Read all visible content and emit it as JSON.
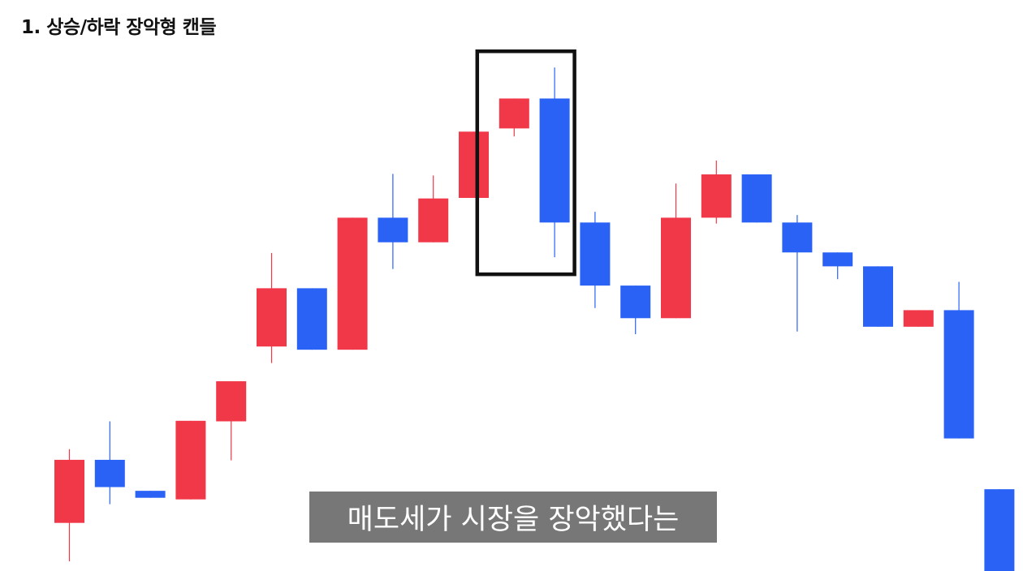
{
  "title": "1. 상승/하락 장악형 캔들",
  "subtitle": "매도세가 시장을 장악했다는",
  "colors": {
    "up": "#f03848",
    "down": "#2a62f5",
    "highlight": "#111111",
    "caption_bg": "#777777"
  },
  "chart_data": {
    "type": "candlestick",
    "title": "",
    "xlabel": "",
    "ylabel": "",
    "grid": false,
    "ylim": [
      0,
      100
    ],
    "highlight_range": [
      11,
      12
    ],
    "candles": [
      {
        "open": 9.0,
        "close": 20.8,
        "high": 22.8,
        "low": 1.8,
        "dir": "up"
      },
      {
        "open": 20.8,
        "close": 15.7,
        "high": 28.0,
        "low": 12.5,
        "dir": "down"
      },
      {
        "open": 15.0,
        "close": 13.7,
        "high": 15.0,
        "low": 13.7,
        "dir": "down"
      },
      {
        "open": 13.4,
        "close": 28.1,
        "high": 28.1,
        "low": 13.4,
        "dir": "up"
      },
      {
        "open": 28.0,
        "close": 35.5,
        "high": 35.5,
        "low": 20.7,
        "dir": "up"
      },
      {
        "open": 42.0,
        "close": 52.9,
        "high": 59.5,
        "low": 38.9,
        "dir": "up"
      },
      {
        "open": 52.9,
        "close": 41.4,
        "high": 52.9,
        "low": 41.4,
        "dir": "down"
      },
      {
        "open": 41.4,
        "close": 66.1,
        "high": 66.1,
        "low": 41.4,
        "dir": "up"
      },
      {
        "open": 66.1,
        "close": 61.5,
        "high": 74.3,
        "low": 56.5,
        "dir": "down"
      },
      {
        "open": 61.5,
        "close": 69.7,
        "high": 74.0,
        "low": 61.5,
        "dir": "up"
      },
      {
        "open": 69.8,
        "close": 82.2,
        "high": 82.2,
        "low": 69.8,
        "dir": "up"
      },
      {
        "open": 82.8,
        "close": 88.4,
        "high": 88.4,
        "low": 81.3,
        "dir": "up"
      },
      {
        "open": 88.4,
        "close": 65.2,
        "high": 94.2,
        "low": 58.7,
        "dir": "down"
      },
      {
        "open": 65.2,
        "close": 53.4,
        "high": 67.2,
        "low": 49.2,
        "dir": "down"
      },
      {
        "open": 53.4,
        "close": 47.3,
        "high": 53.4,
        "low": 44.3,
        "dir": "down"
      },
      {
        "open": 47.3,
        "close": 66.1,
        "high": 72.5,
        "low": 47.3,
        "dir": "up"
      },
      {
        "open": 66.1,
        "close": 74.2,
        "high": 76.8,
        "low": 65.0,
        "dir": "up"
      },
      {
        "open": 74.2,
        "close": 65.2,
        "high": 74.2,
        "low": 65.2,
        "dir": "down"
      },
      {
        "open": 65.2,
        "close": 59.6,
        "high": 66.6,
        "low": 44.8,
        "dir": "down"
      },
      {
        "open": 59.6,
        "close": 57.0,
        "high": 59.6,
        "low": 54.6,
        "dir": "down"
      },
      {
        "open": 57.0,
        "close": 45.7,
        "high": 57.0,
        "low": 45.7,
        "dir": "down"
      },
      {
        "open": 45.7,
        "close": 48.8,
        "high": 48.8,
        "low": 45.7,
        "dir": "up"
      },
      {
        "open": 48.8,
        "close": 24.8,
        "high": 54.1,
        "low": 24.8,
        "dir": "down"
      },
      {
        "open": 15.3,
        "close": 0.0,
        "high": 15.3,
        "low": 0.0,
        "dir": "down"
      }
    ]
  }
}
